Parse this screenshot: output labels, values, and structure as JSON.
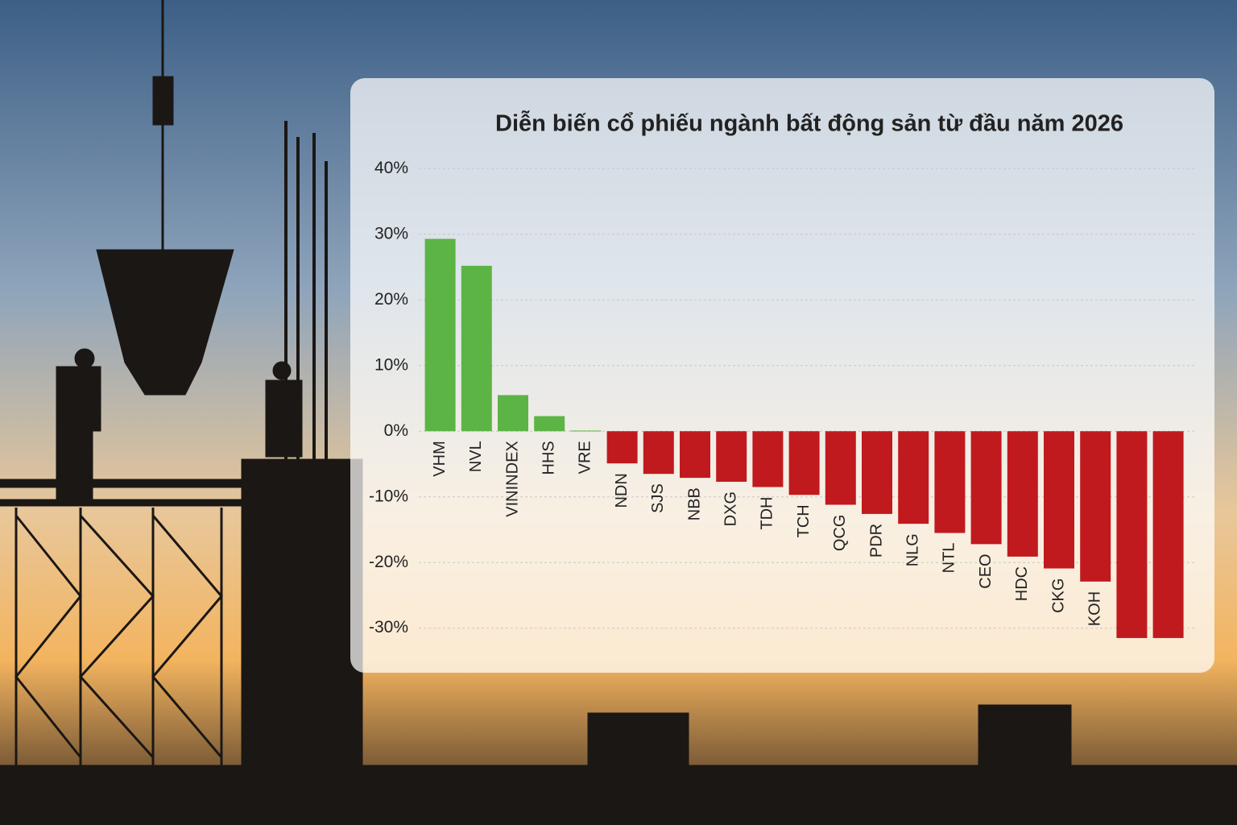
{
  "chart_data": {
    "type": "bar",
    "title": "Diễn biến cổ phiếu ngành bất động sản từ đầu năm 2026",
    "categories": [
      "VHM",
      "NVL",
      "VININDEX",
      "HHS",
      "VRE",
      "NDN",
      "SJS",
      "NBB",
      "DXG",
      "TDH",
      "TCH",
      "QCG",
      "PDR",
      "NLG",
      "NTL",
      "CEO",
      "HDC",
      "CKG",
      "KOH",
      null,
      null
    ],
    "values": [
      29.3,
      25.2,
      5.5,
      2.3,
      0.1,
      -4.9,
      -6.5,
      -7.1,
      -7.7,
      -8.5,
      -9.7,
      -11.2,
      -12.6,
      -14.1,
      -15.5,
      -17.2,
      -19.1,
      -20.9,
      -22.9,
      -31.5,
      -31.5
    ],
    "positive_color": "#5cb445",
    "negative_color": "#c01a1e",
    "ylim": [
      -32,
      42
    ],
    "yticks": [
      {
        "value": 40,
        "label": "40%"
      },
      {
        "value": 30,
        "label": "30%"
      },
      {
        "value": 20,
        "label": "20%"
      },
      {
        "value": 10,
        "label": "10%"
      },
      {
        "value": 0,
        "label": "0%"
      },
      {
        "value": -10,
        "label": "-10%"
      },
      {
        "value": -20,
        "label": "-20%"
      },
      {
        "value": -30,
        "label": "-30%"
      }
    ],
    "grid": true
  }
}
